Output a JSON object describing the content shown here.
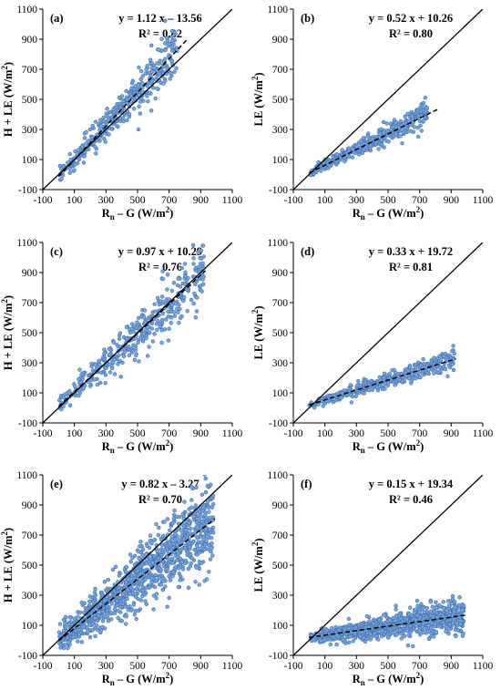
{
  "colors": {
    "point_fill": "#7ba4d8",
    "point_stroke": "#3f6fb0",
    "line": "#000000"
  },
  "chart_data": [
    {
      "type": "scatter",
      "panel": "(a)",
      "equation": "y = 1.12 x – 13.56",
      "r2": "R² = 0.82",
      "xlabel": {
        "main": "R",
        "sub": "n",
        "rest": " – G (W/m",
        "sup": "2",
        "end": ")"
      },
      "ylabel": {
        "main": "H + LE (W/m",
        "sup": "2",
        "end": ")"
      },
      "xlim": [
        -100,
        1100
      ],
      "ylim": [
        -100,
        1100
      ],
      "ticks": [
        -100,
        100,
        300,
        500,
        700,
        900,
        1100
      ],
      "fit": {
        "slope": 1.12,
        "intercept": -13.56,
        "x_range": [
          0,
          820
        ]
      },
      "n_points": 380,
      "x_range": [
        0,
        750
      ],
      "noise": 70,
      "seed": 11
    },
    {
      "type": "scatter",
      "panel": "(b)",
      "equation": "y = 0.52 x + 10.26",
      "r2": "R² = 0.80",
      "xlabel": {
        "main": "R",
        "sub": "n",
        "rest": " – G (W/m",
        "sup": "2",
        "end": ")"
      },
      "ylabel": {
        "main": "LE (W/m",
        "sup": "2",
        "end": ")"
      },
      "xlim": [
        -100,
        1100
      ],
      "ylim": [
        -100,
        1100
      ],
      "ticks": [
        -100,
        100,
        300,
        500,
        700,
        900,
        1100
      ],
      "fit": {
        "slope": 0.52,
        "intercept": 10.26,
        "x_range": [
          0,
          820
        ]
      },
      "n_points": 380,
      "x_range": [
        0,
        750
      ],
      "noise": 35,
      "seed": 23
    },
    {
      "type": "scatter",
      "panel": "(c)",
      "equation": "y = 0.97 x + 10.29",
      "r2": "R² = 0.76",
      "xlabel": {
        "main": "R",
        "sub": "n",
        "rest": " – G (W/m",
        "sup": "2",
        "end": ")"
      },
      "ylabel": {
        "main": "H + LE (W/m",
        "sup": "2",
        "end": ")"
      },
      "xlim": [
        -100,
        1100
      ],
      "ylim": [
        -100,
        1100
      ],
      "ticks": [
        -100,
        100,
        300,
        500,
        700,
        900,
        1100
      ],
      "fit": {
        "slope": 0.97,
        "intercept": 10.29,
        "x_range": [
          0,
          930
        ]
      },
      "n_points": 400,
      "x_range": [
        0,
        920
      ],
      "noise": 85,
      "seed": 37
    },
    {
      "type": "scatter",
      "panel": "(d)",
      "equation": "y = 0.33 x + 19.72",
      "r2": "R² = 0.81",
      "xlabel": {
        "main": "R",
        "sub": "n",
        "rest": " – G (W/m",
        "sup": "2",
        "end": ")"
      },
      "ylabel": {
        "main": "LE (W/m",
        "sup": "2",
        "end": ")"
      },
      "xlim": [
        -100,
        1100
      ],
      "ylim": [
        -100,
        1100
      ],
      "ticks": [
        -100,
        100,
        300,
        500,
        700,
        900,
        1100
      ],
      "fit": {
        "slope": 0.33,
        "intercept": 19.72,
        "x_range": [
          0,
          930
        ]
      },
      "n_points": 420,
      "x_range": [
        0,
        920
      ],
      "noise": 32,
      "seed": 41
    },
    {
      "type": "scatter",
      "panel": "(e)",
      "equation": "y = 0.82 x – 3.27",
      "r2": "R² = 0.70",
      "xlabel": {
        "main": "R",
        "sub": "n",
        "rest": " – G (W/m",
        "sup": "2",
        "end": ")"
      },
      "ylabel": {
        "main": "H + LE (W/m",
        "sup": "2",
        "end": ")"
      },
      "xlim": [
        -100,
        1100
      ],
      "ylim": [
        -100,
        1100
      ],
      "ticks": [
        -100,
        100,
        300,
        500,
        700,
        900,
        1100
      ],
      "fit": {
        "slope": 0.82,
        "intercept": -3.27,
        "x_range": [
          0,
          990
        ]
      },
      "n_points": 1100,
      "x_range": [
        0,
        980
      ],
      "noise": 120,
      "seed": 53
    },
    {
      "type": "scatter",
      "panel": "(f)",
      "equation": "y = 0.15 x + 19.34",
      "r2": "R² = 0.46",
      "xlabel": {
        "main": "R",
        "sub": "n",
        "rest": " – G (W/m",
        "sup": "2",
        "end": ")"
      },
      "ylabel": {
        "main": "LE (W/m",
        "sup": "2",
        "end": ")"
      },
      "xlim": [
        -100,
        1100
      ],
      "ylim": [
        -100,
        1100
      ],
      "ticks": [
        -100,
        100,
        300,
        500,
        700,
        900,
        1100
      ],
      "fit": {
        "slope": 0.15,
        "intercept": 19.34,
        "x_range": [
          0,
          990
        ]
      },
      "n_points": 1100,
      "x_range": [
        0,
        980
      ],
      "noise": 45,
      "seed": 67
    }
  ]
}
